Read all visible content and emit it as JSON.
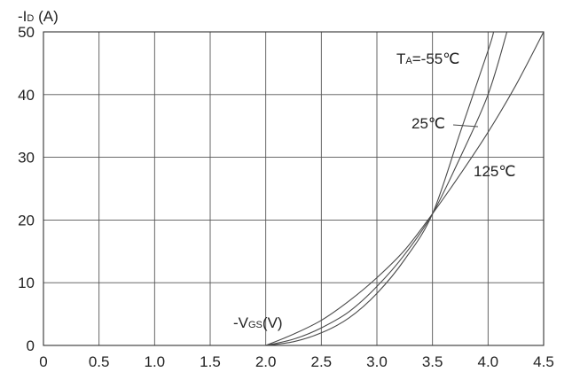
{
  "chart_data": {
    "type": "line",
    "ylabel_main": "-I",
    "ylabel_sub": "D",
    "ylabel_unit": " (A)",
    "xlabel_main": "-V",
    "xlabel_sub": "GS",
    "xlabel_unit": "(V)",
    "xlim": [
      0,
      4.5
    ],
    "ylim": [
      0,
      50
    ],
    "x_ticks": [
      "0",
      "0.5",
      "1.0",
      "1.5",
      "2.0",
      "2.5",
      "3.0",
      "3.5",
      "4.0",
      "4.5"
    ],
    "x_tick_values": [
      0,
      0.5,
      1.0,
      1.5,
      2.0,
      2.5,
      3.0,
      3.5,
      4.0,
      4.5
    ],
    "y_ticks": [
      "0",
      "10",
      "20",
      "30",
      "40",
      "50"
    ],
    "y_tick_values": [
      0,
      10,
      20,
      30,
      40,
      50
    ],
    "grid": true,
    "series": [
      {
        "name_prefix": "T",
        "name_sub": "A",
        "name": "=-55℃",
        "x": [
          2.0,
          2.25,
          2.5,
          2.75,
          3.0,
          3.25,
          3.5,
          3.75,
          4.0,
          4.05
        ],
        "y": [
          0,
          0.6,
          2.0,
          4.4,
          8.3,
          13.7,
          21,
          34,
          47,
          50
        ]
      },
      {
        "name": "25℃",
        "x": [
          2.0,
          2.25,
          2.5,
          2.75,
          3.0,
          3.25,
          3.5,
          3.75,
          4.0,
          4.17
        ],
        "y": [
          0,
          1.0,
          2.8,
          5.4,
          9.4,
          14.5,
          21,
          30,
          40,
          50
        ]
      },
      {
        "name": "125℃",
        "x": [
          2.0,
          2.25,
          2.5,
          2.75,
          3.0,
          3.25,
          3.5,
          3.75,
          4.0,
          4.25,
          4.5
        ],
        "y": [
          0,
          1.8,
          4.0,
          7.1,
          10.8,
          15.2,
          21,
          27.3,
          34,
          41.5,
          50
        ]
      }
    ]
  }
}
